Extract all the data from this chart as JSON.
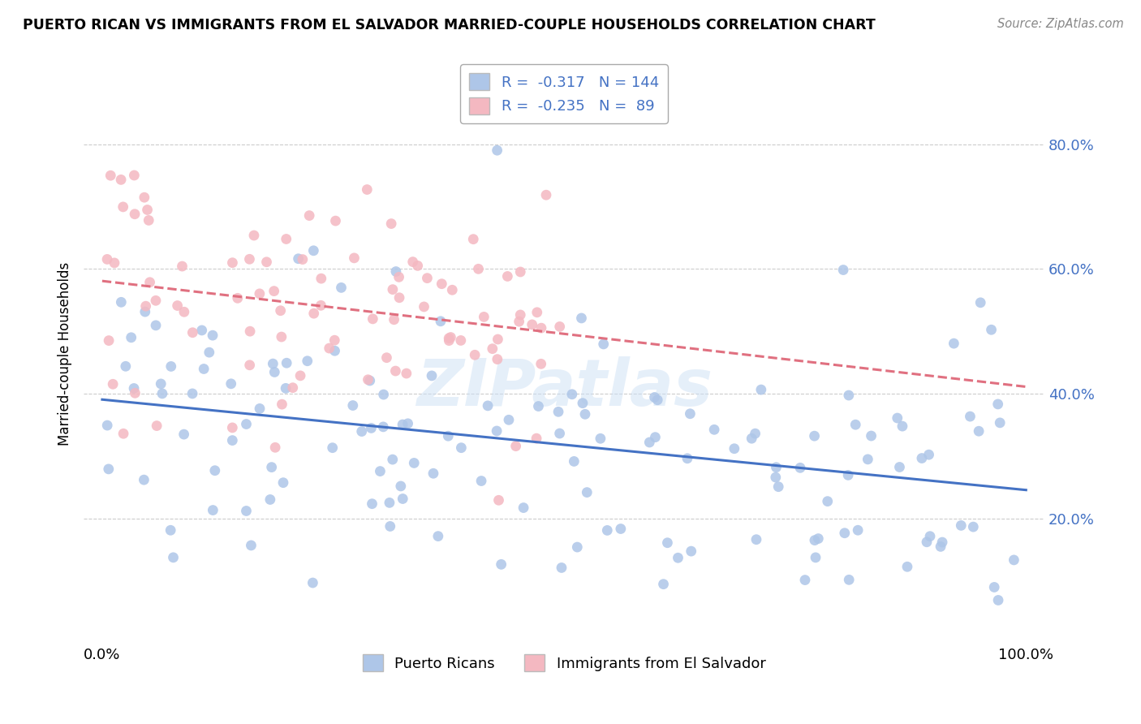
{
  "title": "PUERTO RICAN VS IMMIGRANTS FROM EL SALVADOR MARRIED-COUPLE HOUSEHOLDS CORRELATION CHART",
  "source": "Source: ZipAtlas.com",
  "ylabel": "Married-couple Households",
  "legend_1_color": "#aec6e8",
  "legend_1_label": "R =  -0.317   N = 144",
  "legend_2_color": "#f4b8c1",
  "legend_2_label": "R =  -0.235   N =  89",
  "line_1_color": "#4472c4",
  "line_2_color": "#e07080",
  "scatter_1_color": "#aec6e8",
  "scatter_2_color": "#f4b8c1",
  "watermark": "ZIPatlas",
  "scatter_alpha": 0.85,
  "R1": -0.317,
  "N1": 144,
  "R2": -0.235,
  "N2": 89,
  "ytick_vals": [
    0.2,
    0.4,
    0.6,
    0.8
  ],
  "ytick_labels": [
    "20.0%",
    "40.0%",
    "60.0%",
    "80.0%"
  ],
  "bottom_legend_labels": [
    "Puerto Ricans",
    "Immigrants from El Salvador"
  ]
}
